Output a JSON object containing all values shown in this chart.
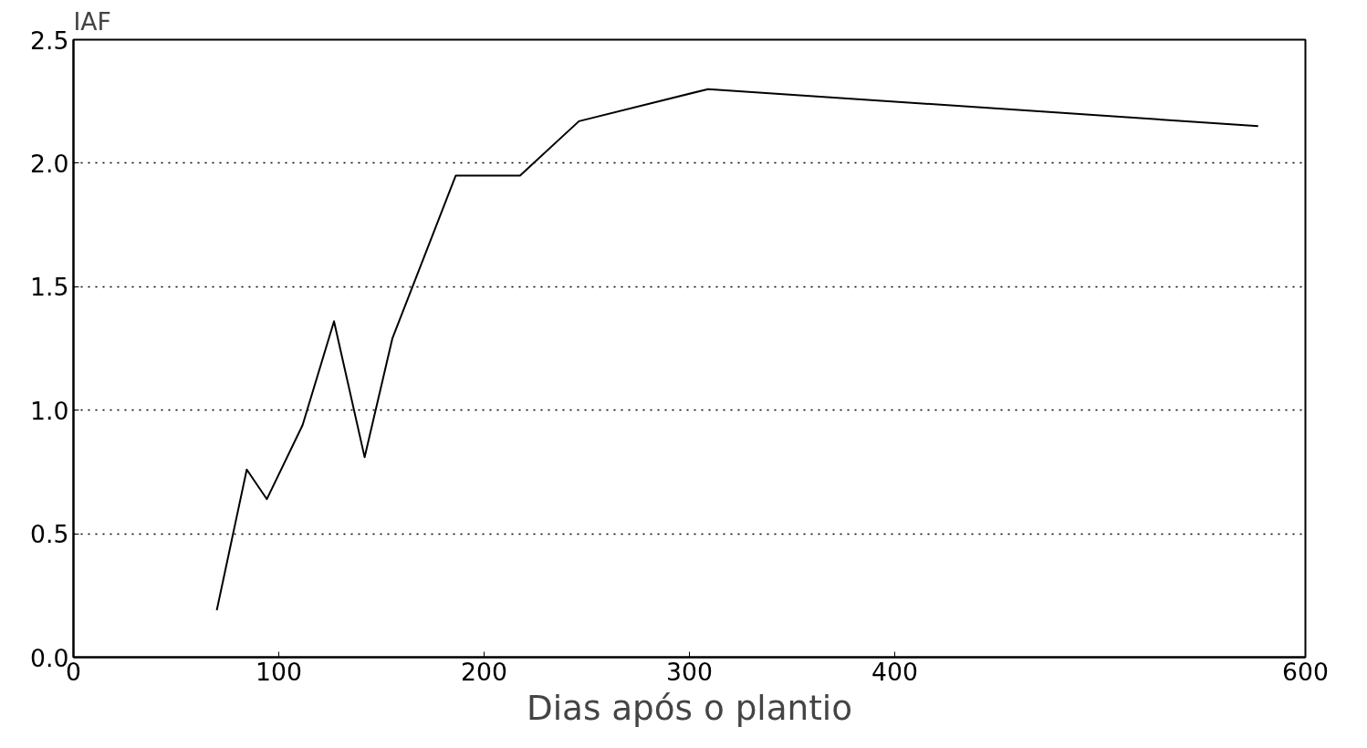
{
  "chart_data": {
    "type": "line",
    "xlabel": "Dias após o plantio",
    "ylabel": "IAF",
    "x": [
      69.8,
      84.4,
      94.2,
      111.6,
      126.9,
      141.8,
      155.3,
      186.2,
      217.5,
      246.2,
      309.1,
      577
    ],
    "series": [
      {
        "color": "#000000",
        "values": [
          0.19,
          0.76,
          0.64,
          0.94,
          1.36,
          0.81,
          1.29,
          1.95,
          1.95,
          2.17,
          2.3,
          2.15
        ]
      }
    ],
    "xlim": [
      0,
      600
    ],
    "xticks": [
      0,
      100,
      200,
      300,
      400,
      600
    ],
    "ylim": [
      0,
      2.5
    ],
    "yticks": [
      {
        "value": 0,
        "label": "0.0"
      },
      {
        "value": 0.5,
        "label": "0.5"
      },
      {
        "value": 1,
        "label": "1.0"
      },
      {
        "value": 1.5,
        "label": "1.5"
      },
      {
        "value": 2,
        "label": "2.0"
      },
      {
        "value": 2.5,
        "label": "2.5"
      }
    ],
    "grid": "y",
    "line_style": "solid"
  }
}
